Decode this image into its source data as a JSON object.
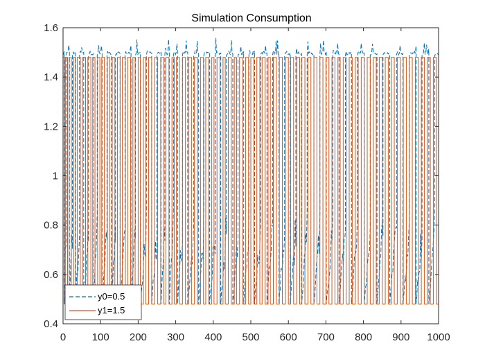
{
  "chart_data": {
    "type": "line",
    "title": "Simulation Consumption",
    "xlabel": "",
    "ylabel": "",
    "xlim": [
      0,
      1000
    ],
    "ylim": [
      0.4,
      1.6
    ],
    "x_ticks": [
      0,
      100,
      200,
      300,
      400,
      500,
      600,
      700,
      800,
      900,
      1000
    ],
    "y_ticks": [
      0.4,
      0.6,
      0.8,
      1.0,
      1.2,
      1.4,
      1.6
    ],
    "x_tick_labels": [
      "0",
      "100",
      "200",
      "300",
      "400",
      "500",
      "600",
      "700",
      "800",
      "900",
      "1000"
    ],
    "y_tick_labels": [
      "0.4",
      "0.6",
      "0.8",
      "1",
      "1.2",
      "1.4",
      "1.6"
    ],
    "grid": false,
    "legend_position": "bottom-left",
    "series": [
      {
        "name": "y0=0.5",
        "style": "dashed",
        "color": "#0072BD",
        "low": 0.48,
        "high": 1.49,
        "spike_max": 1.56,
        "switch_x": [
          3,
          8,
          17,
          25,
          33,
          44,
          55,
          68,
          80,
          91,
          104,
          117,
          129,
          140,
          152,
          165,
          181,
          193,
          206,
          222,
          236,
          250,
          261,
          271,
          283,
          294,
          305,
          318,
          332,
          348,
          361,
          375,
          390,
          405,
          420,
          435,
          452,
          466,
          481,
          495,
          510,
          526,
          543,
          558,
          575,
          590,
          605,
          620,
          635,
          650,
          668,
          684,
          701,
          718,
          735,
          752,
          768,
          784,
          802,
          818,
          836,
          852,
          870,
          888,
          905,
          922,
          940,
          956,
          974,
          990
        ]
      },
      {
        "name": "y1=1.5",
        "style": "solid",
        "color": "#D95319",
        "low": 0.48,
        "high": 1.48,
        "switch_x": [
          4,
          6,
          12,
          16,
          22,
          28,
          34,
          38,
          46,
          52,
          60,
          66,
          74,
          79,
          85,
          92,
          98,
          103,
          110,
          118,
          124,
          131,
          138,
          145,
          152,
          158,
          166,
          172,
          180,
          186,
          192,
          200,
          206,
          214,
          220,
          228,
          236,
          244,
          252,
          260,
          268,
          274,
          282,
          290,
          296,
          302,
          310,
          318,
          326,
          334,
          342,
          350,
          358,
          366,
          374,
          380,
          388,
          396,
          402,
          410,
          418,
          426,
          432,
          440,
          448,
          456,
          462,
          470,
          478,
          486,
          494,
          500,
          508,
          516,
          524,
          530,
          538,
          546,
          552,
          560,
          568,
          576,
          584,
          592,
          600,
          606,
          614,
          622,
          630,
          636,
          644,
          652,
          660,
          668,
          676,
          684,
          692,
          700,
          708,
          716,
          724,
          732,
          738,
          746,
          754,
          762,
          770,
          778,
          786,
          794,
          802,
          810,
          818,
          826,
          834,
          842,
          850,
          858,
          866,
          874,
          882,
          890,
          898,
          906,
          914,
          922,
          930,
          938,
          946,
          954,
          962,
          970,
          978,
          986,
          994
        ]
      }
    ]
  }
}
